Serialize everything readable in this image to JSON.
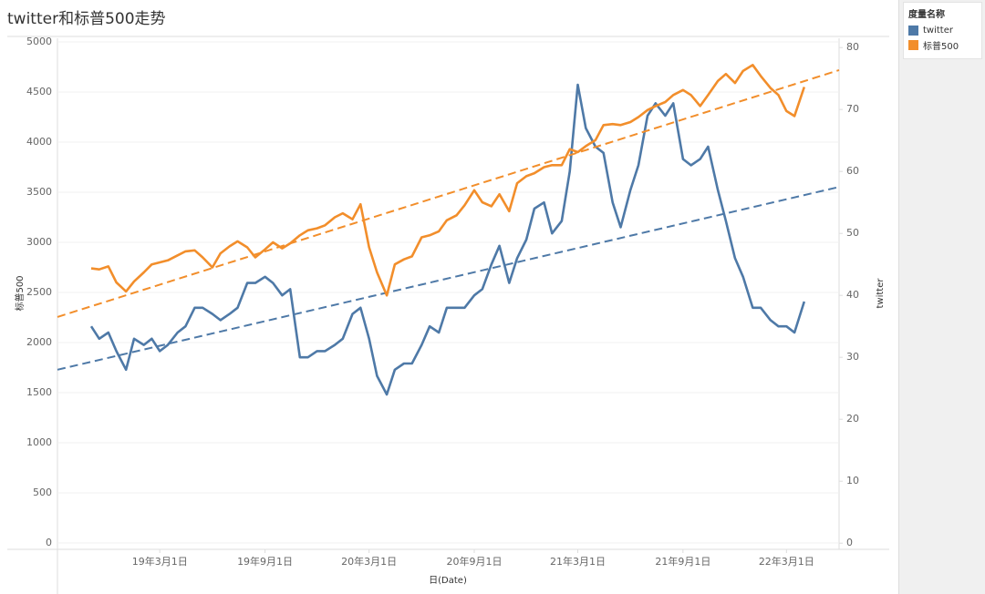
{
  "chart_data": {
    "type": "line",
    "title": "twitter和标普500走势",
    "x_label": "日(Date)",
    "y_label": "标普500",
    "y2_label": "twitter",
    "legend": {
      "title": "度量名称",
      "position": "right"
    },
    "grid": true,
    "xlim": [
      "2018-09-03",
      "2022-06-01"
    ],
    "xticks": [
      {
        "value": "2019-03-01",
        "label": "19年3月1日"
      },
      {
        "value": "2019-09-01",
        "label": "19年9月1日"
      },
      {
        "value": "2020-03-01",
        "label": "20年3月1日"
      },
      {
        "value": "2020-09-01",
        "label": "20年9月1日"
      },
      {
        "value": "2021-03-01",
        "label": "21年3月1日"
      },
      {
        "value": "2021-09-01",
        "label": "21年9月1日"
      },
      {
        "value": "2022-03-01",
        "label": "22年3月1日"
      }
    ],
    "ylim": [
      -64,
      5036
    ],
    "yticks": [
      0,
      500,
      1000,
      1500,
      2000,
      2500,
      3000,
      3500,
      4000,
      4500,
      5000
    ],
    "y2lim": [
      -1,
      81.5
    ],
    "y2ticks": [
      0,
      10,
      20,
      30,
      40,
      50,
      60,
      70,
      80
    ],
    "x": [
      "2018-11-01",
      "2018-11-15",
      "2018-12-01",
      "2018-12-15",
      "2019-01-01",
      "2019-01-15",
      "2019-02-01",
      "2019-02-15",
      "2019-03-01",
      "2019-03-15",
      "2019-04-01",
      "2019-04-15",
      "2019-05-01",
      "2019-05-15",
      "2019-06-01",
      "2019-06-15",
      "2019-07-01",
      "2019-07-15",
      "2019-08-01",
      "2019-08-15",
      "2019-09-01",
      "2019-09-15",
      "2019-10-01",
      "2019-10-15",
      "2019-11-01",
      "2019-11-15",
      "2019-12-01",
      "2019-12-15",
      "2020-01-01",
      "2020-01-15",
      "2020-02-01",
      "2020-02-15",
      "2020-03-01",
      "2020-03-15",
      "2020-04-01",
      "2020-04-15",
      "2020-05-01",
      "2020-05-15",
      "2020-06-01",
      "2020-06-15",
      "2020-07-01",
      "2020-07-15",
      "2020-08-01",
      "2020-08-15",
      "2020-09-01",
      "2020-09-15",
      "2020-10-01",
      "2020-10-15",
      "2020-11-01",
      "2020-11-15",
      "2020-12-01",
      "2020-12-15",
      "2021-01-01",
      "2021-01-15",
      "2021-02-01",
      "2021-02-15",
      "2021-03-01",
      "2021-03-15",
      "2021-04-01",
      "2021-04-15",
      "2021-05-01",
      "2021-05-15",
      "2021-06-01",
      "2021-06-15",
      "2021-07-01",
      "2021-07-15",
      "2021-08-01",
      "2021-08-15",
      "2021-09-01",
      "2021-09-15",
      "2021-10-01",
      "2021-10-15",
      "2021-11-01",
      "2021-11-15",
      "2021-12-01",
      "2021-12-15",
      "2022-01-01",
      "2022-01-15",
      "2022-02-01",
      "2022-02-15",
      "2022-03-01",
      "2022-03-15",
      "2022-04-01"
    ],
    "series": [
      {
        "name": "twitter",
        "color": "#4e79a7",
        "axis": "y2",
        "values": [
          35,
          33,
          34,
          31,
          28,
          33,
          32,
          33,
          31,
          32,
          34,
          35,
          38,
          38,
          37,
          36,
          37,
          38,
          42,
          42,
          43,
          42,
          40,
          41,
          30,
          30,
          31,
          31,
          32,
          33,
          37,
          38,
          33,
          27,
          24,
          28,
          29,
          29,
          32,
          35,
          34,
          38,
          38,
          38,
          40,
          41,
          45,
          48,
          42,
          46,
          49,
          54,
          55,
          50,
          52,
          60,
          74,
          67,
          64,
          63,
          55,
          51,
          57,
          61,
          69,
          71,
          69,
          71,
          62,
          61,
          62,
          64,
          57,
          52,
          46,
          43,
          38,
          38,
          36,
          35,
          35,
          34,
          39
        ],
        "trend": {
          "x": [
            "2018-09-03",
            "2022-06-01"
          ],
          "values": [
            28,
            57.5
          ]
        }
      },
      {
        "name": "标普500",
        "color": "#f28e2b",
        "values": [
          2740,
          2730,
          2760,
          2600,
          2510,
          2610,
          2700,
          2780,
          2800,
          2820,
          2870,
          2910,
          2920,
          2850,
          2750,
          2890,
          2960,
          3010,
          2950,
          2850,
          2930,
          3000,
          2940,
          2990,
          3070,
          3120,
          3140,
          3170,
          3250,
          3290,
          3230,
          3380,
          2950,
          2700,
          2470,
          2780,
          2830,
          2860,
          3050,
          3070,
          3110,
          3220,
          3270,
          3370,
          3520,
          3400,
          3360,
          3480,
          3310,
          3590,
          3660,
          3690,
          3750,
          3770,
          3770,
          3930,
          3900,
          3960,
          4020,
          4170,
          4180,
          4170,
          4200,
          4250,
          4320,
          4360,
          4400,
          4470,
          4520,
          4470,
          4360,
          4470,
          4610,
          4680,
          4590,
          4710,
          4770,
          4660,
          4540,
          4470,
          4310,
          4260,
          4550
        ],
        "trend": {
          "x": [
            "2018-09-03",
            "2022-06-01"
          ],
          "values": [
            2255,
            4718
          ]
        }
      }
    ]
  }
}
